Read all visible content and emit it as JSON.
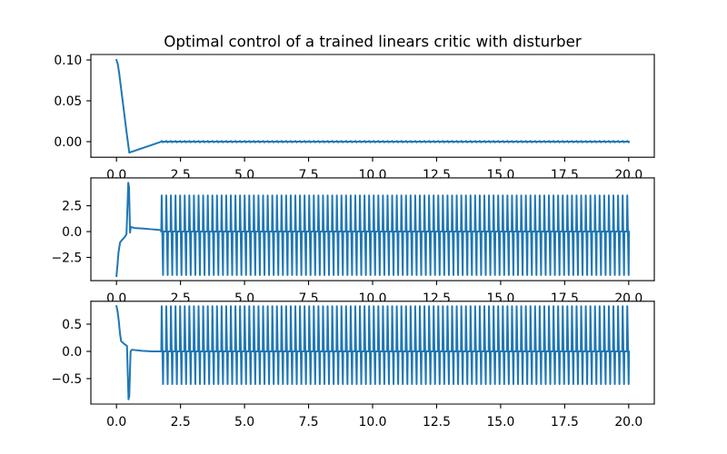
{
  "figure": {
    "background": "#ffffff",
    "axes_color": "#000000",
    "line_color": "#1f77b4"
  },
  "chart_data": [
    {
      "type": "line",
      "title": "Optimal control of a trained linears critic with disturber",
      "grid": false,
      "xlim": [
        -1.0,
        21.0
      ],
      "ylim": [
        -0.0191,
        0.1067
      ],
      "xticks": [
        0.0,
        2.5,
        5.0,
        7.5,
        10.0,
        12.5,
        15.0,
        17.5,
        20.0
      ],
      "xtick_labels": [
        "0.0",
        "2.5",
        "5.0",
        "7.5",
        "10.0",
        "12.5",
        "15.0",
        "17.5",
        "20.0"
      ],
      "yticks": [
        0.1,
        0.05,
        0.0
      ],
      "ytick_labels": [
        "0.10",
        "0.05",
        "0.00"
      ],
      "series": [
        {
          "color": "#1f77b4",
          "x": [
            0.0,
            0.05,
            0.1,
            0.2,
            0.3,
            0.4,
            0.5,
            0.8,
            1.1,
            1.4,
            1.72
          ],
          "y": [
            0.1,
            0.095,
            0.085,
            0.06,
            0.035,
            0.01,
            -0.0134,
            -0.0102,
            -0.007,
            -0.0038,
            -0.0003
          ],
          "oscillation": {
            "from": 1.75,
            "to": 20.0,
            "period": 0.18,
            "baseline": 0.0,
            "max": 0.0008,
            "min": -0.0008
          }
        }
      ]
    },
    {
      "type": "line",
      "grid": false,
      "xlim": [
        -1.0,
        21.0
      ],
      "ylim": [
        -4.75,
        5.2
      ],
      "xticks": [
        0.0,
        2.5,
        5.0,
        7.5,
        10.0,
        12.5,
        15.0,
        17.5,
        20.0
      ],
      "xtick_labels": [
        "0.0",
        "2.5",
        "5.0",
        "7.5",
        "10.0",
        "12.5",
        "15.0",
        "17.5",
        "20.0"
      ],
      "yticks": [
        2.5,
        0.0,
        -2.5
      ],
      "ytick_labels": [
        "2.5",
        "0.0",
        "−2.5"
      ],
      "series": [
        {
          "color": "#1f77b4",
          "x": [
            0.0,
            0.04,
            0.08,
            0.14,
            0.22,
            0.32,
            0.39,
            0.43,
            0.46,
            0.49,
            0.53,
            0.56,
            0.7,
            1.0,
            1.4,
            1.72
          ],
          "y": [
            -4.3,
            -3.2,
            -2.0,
            -1.05,
            -0.8,
            -0.53,
            -0.26,
            2.5,
            4.73,
            4.3,
            -0.1,
            0.45,
            0.35,
            0.3,
            0.22,
            0.15
          ],
          "oscillation": {
            "from": 1.75,
            "to": 20.0,
            "period": 0.18,
            "baseline": 0.0,
            "max": 3.5,
            "min": -4.2
          }
        }
      ]
    },
    {
      "type": "line",
      "grid": false,
      "xlim": [
        -1.0,
        21.0
      ],
      "ylim": [
        -0.967,
        0.92
      ],
      "xticks": [
        0.0,
        2.5,
        5.0,
        7.5,
        10.0,
        12.5,
        15.0,
        17.5,
        20.0
      ],
      "xtick_labels": [
        "0.0",
        "2.5",
        "5.0",
        "7.5",
        "10.0",
        "12.5",
        "15.0",
        "17.5",
        "20.0"
      ],
      "yticks": [
        0.5,
        0.0,
        -0.5
      ],
      "ytick_labels": [
        "0.5",
        "0.0",
        "−0.5"
      ],
      "series": [
        {
          "color": "#1f77b4",
          "x": [
            0.0,
            0.04,
            0.08,
            0.14,
            0.18,
            0.32,
            0.41,
            0.44,
            0.47,
            0.5,
            0.55,
            0.6,
            1.0,
            1.4,
            1.72
          ],
          "y": [
            0.83,
            0.74,
            0.6,
            0.32,
            0.19,
            0.13,
            0.1,
            -0.4,
            -0.88,
            -0.82,
            0.0,
            0.03,
            0.01,
            0.0,
            0.0
          ],
          "oscillation": {
            "from": 1.75,
            "to": 20.0,
            "period": 0.18,
            "baseline": 0.0,
            "max": 0.83,
            "min": -0.6
          }
        }
      ]
    }
  ]
}
